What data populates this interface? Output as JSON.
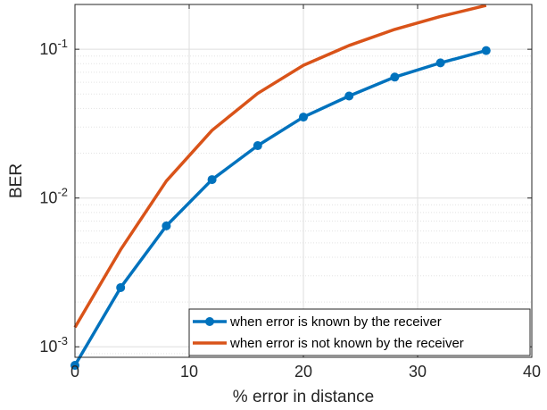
{
  "chart_data": {
    "type": "line",
    "title": "",
    "xlabel": "% error in distance",
    "ylabel": "BER",
    "xlim": [
      0,
      40
    ],
    "ylim": [
      0.00085,
      0.2
    ],
    "yscale": "log",
    "grid": true,
    "minor_grid": true,
    "legend_position": "bottom-right",
    "x_ticks": [
      0,
      10,
      20,
      30,
      40
    ],
    "x_tick_labels": [
      "0",
      "10",
      "20",
      "30",
      "40"
    ],
    "y_ticks": [
      0.001,
      0.01,
      0.1
    ],
    "y_tick_labels": [
      {
        "base": "10",
        "exp": "-3"
      },
      {
        "base": "10",
        "exp": "-2"
      },
      {
        "base": "10",
        "exp": "-1"
      }
    ],
    "series": [
      {
        "name": "when error is known by the receiver",
        "color": "#0072BD",
        "marker": "circle",
        "x": [
          0,
          4,
          8,
          12,
          16,
          20,
          24,
          28,
          32,
          36
        ],
        "values": [
          0.00075,
          0.0025,
          0.0065,
          0.0133,
          0.0225,
          0.035,
          0.0485,
          0.065,
          0.081,
          0.098
        ]
      },
      {
        "name": "when error is not known by the receiver",
        "color": "#D95319",
        "marker": "none",
        "x": [
          0,
          4,
          8,
          12,
          16,
          20,
          24,
          28,
          32,
          36
        ],
        "values": [
          0.00135,
          0.0045,
          0.013,
          0.0285,
          0.0505,
          0.078,
          0.106,
          0.136,
          0.166,
          0.197
        ]
      }
    ]
  }
}
